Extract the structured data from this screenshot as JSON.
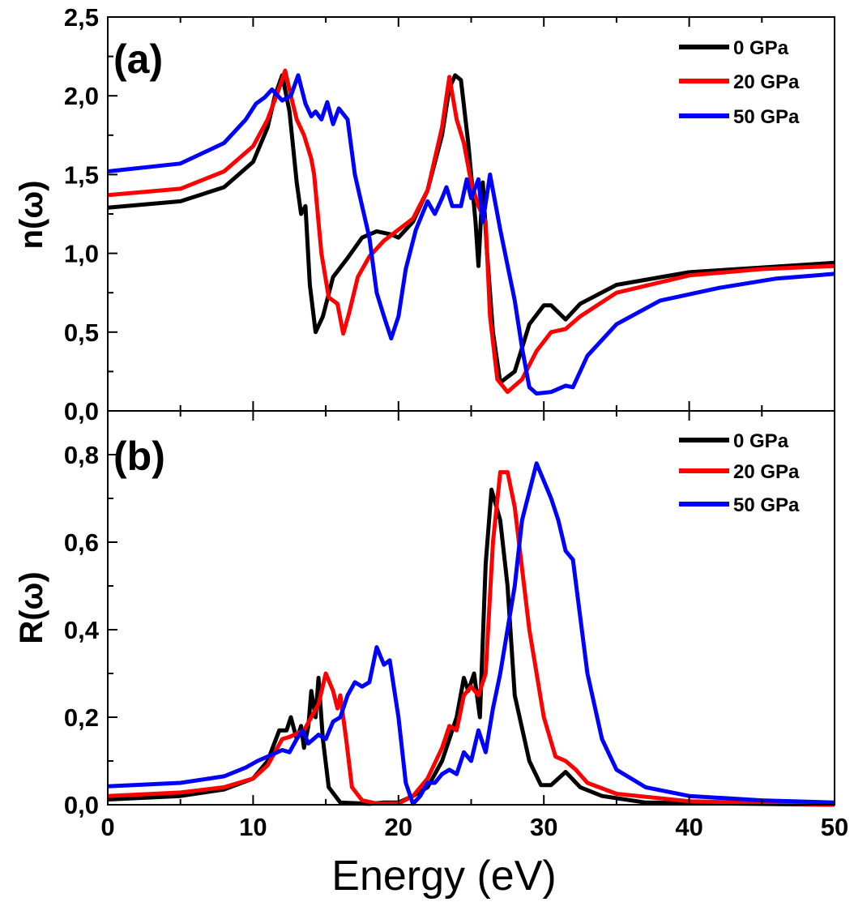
{
  "chart_data": [
    {
      "type": "line",
      "panel_label": "(a)",
      "xlabel": "Energy (eV)",
      "ylabel": "n(ω)",
      "xlim": [
        0,
        50
      ],
      "ylim": [
        0,
        2.5
      ],
      "xticks": [
        "0",
        "10",
        "20",
        "30",
        "40",
        "50"
      ],
      "yticks": [
        "0,0",
        "0,5",
        "1,0",
        "1,5",
        "2,0",
        "2,5"
      ],
      "grid": false,
      "legend_position": "top-right",
      "series": [
        {
          "name": "0 GPa",
          "color": "#000000",
          "x": [
            0,
            5,
            8,
            10,
            11,
            11.5,
            12,
            12.5,
            13,
            13.3,
            13.6,
            13.9,
            14.3,
            14.8,
            15.5,
            16.5,
            17.5,
            18.5,
            19.5,
            20,
            21,
            22,
            23,
            23.5,
            23.9,
            24.3,
            24.8,
            25.3,
            25.5,
            25.8,
            26.1,
            26.5,
            27,
            28,
            29,
            30,
            30.5,
            31.5,
            32.5,
            35,
            40,
            45,
            50
          ],
          "y": [
            1.29,
            1.33,
            1.42,
            1.58,
            1.8,
            2.0,
            2.13,
            1.9,
            1.45,
            1.25,
            1.3,
            0.8,
            0.5,
            0.6,
            0.85,
            0.97,
            1.1,
            1.14,
            1.12,
            1.1,
            1.2,
            1.4,
            1.75,
            2.05,
            2.13,
            2.1,
            1.7,
            1.2,
            0.92,
            1.45,
            1.0,
            0.5,
            0.18,
            0.25,
            0.55,
            0.67,
            0.67,
            0.58,
            0.68,
            0.8,
            0.88,
            0.91,
            0.94
          ]
        },
        {
          "name": "20 GPa",
          "color": "#ff0000",
          "x": [
            0,
            5,
            8,
            10,
            11,
            11.8,
            12.2,
            12.6,
            13,
            13.5,
            14,
            14.2,
            14.7,
            15.2,
            15.8,
            16.2,
            16.6,
            17.2,
            18,
            19,
            20,
            21,
            22,
            23,
            23.5,
            24,
            24.5,
            25,
            25.5,
            26,
            26.3,
            26.8,
            27.5,
            28.5,
            29.5,
            30.5,
            31.5,
            32.5,
            35,
            40,
            45,
            50
          ],
          "y": [
            1.37,
            1.41,
            1.52,
            1.68,
            1.85,
            2.05,
            2.16,
            2.0,
            1.85,
            1.75,
            1.6,
            1.5,
            1.0,
            0.72,
            0.68,
            0.49,
            0.62,
            0.85,
            0.98,
            1.08,
            1.15,
            1.22,
            1.4,
            1.8,
            2.12,
            1.85,
            1.7,
            1.45,
            1.3,
            1.2,
            0.6,
            0.2,
            0.12,
            0.2,
            0.38,
            0.5,
            0.52,
            0.6,
            0.75,
            0.86,
            0.9,
            0.92
          ]
        },
        {
          "name": "50 GPa",
          "color": "#0000ff",
          "x": [
            0,
            5,
            8,
            9.5,
            10.2,
            10.8,
            11.3,
            12,
            12.6,
            13.1,
            13.6,
            14,
            14.3,
            14.7,
            15.1,
            15.5,
            15.9,
            16.5,
            17,
            17.5,
            18,
            18.5,
            19,
            19.5,
            20,
            20.5,
            21.2,
            22,
            22.5,
            23,
            23.3,
            23.7,
            24.3,
            24.7,
            25,
            25.5,
            25.8,
            26.3,
            27,
            28,
            28.5,
            29,
            29.5,
            30.5,
            31.5,
            32,
            33,
            35,
            38,
            42,
            46,
            50
          ],
          "y": [
            1.52,
            1.57,
            1.7,
            1.85,
            1.95,
            1.99,
            2.04,
            1.97,
            2.0,
            2.13,
            1.95,
            1.87,
            1.9,
            1.85,
            1.96,
            1.82,
            1.92,
            1.85,
            1.5,
            1.3,
            1.1,
            0.75,
            0.6,
            0.46,
            0.6,
            0.9,
            1.15,
            1.33,
            1.25,
            1.35,
            1.42,
            1.3,
            1.3,
            1.47,
            1.35,
            1.47,
            1.2,
            1.5,
            1.15,
            0.7,
            0.4,
            0.15,
            0.11,
            0.12,
            0.16,
            0.15,
            0.35,
            0.55,
            0.7,
            0.78,
            0.84,
            0.87
          ]
        }
      ]
    },
    {
      "type": "line",
      "panel_label": "(b)",
      "xlabel": "Energy (eV)",
      "ylabel": "R(ω)",
      "xlim": [
        0,
        50
      ],
      "ylim": [
        0,
        0.9
      ],
      "xticks": [
        "0",
        "10",
        "20",
        "30",
        "40",
        "50"
      ],
      "yticks": [
        "0,0",
        "0,2",
        "0,4",
        "0,6",
        "0,8"
      ],
      "grid": false,
      "legend_position": "top-right",
      "series": [
        {
          "name": "0 GPa",
          "color": "#000000",
          "x": [
            0,
            5,
            8,
            10,
            11,
            11.8,
            12.3,
            12.6,
            13,
            13.3,
            13.5,
            13.8,
            14,
            14.3,
            14.5,
            14.8,
            15.2,
            16,
            18,
            19,
            20,
            21,
            22,
            23,
            24,
            24.5,
            24.8,
            25.2,
            25.6,
            26,
            26.4,
            27,
            27.5,
            28,
            29,
            29.8,
            30.5,
            31.5,
            32.5,
            34,
            37,
            50
          ],
          "y": [
            0.012,
            0.02,
            0.035,
            0.06,
            0.1,
            0.17,
            0.17,
            0.2,
            0.15,
            0.18,
            0.13,
            0.18,
            0.26,
            0.2,
            0.29,
            0.15,
            0.04,
            0.005,
            0.002,
            0.005,
            0.005,
            0.02,
            0.04,
            0.1,
            0.2,
            0.29,
            0.26,
            0.3,
            0.2,
            0.55,
            0.72,
            0.65,
            0.5,
            0.25,
            0.1,
            0.045,
            0.045,
            0.075,
            0.04,
            0.02,
            0.005,
            0.0
          ]
        },
        {
          "name": "20 GPa",
          "color": "#ff0000",
          "x": [
            0,
            5,
            8,
            10,
            11,
            12,
            12.5,
            13.5,
            14,
            14.5,
            15,
            15.5,
            15.8,
            16,
            16.4,
            16.8,
            17.5,
            18.5,
            20,
            21,
            22,
            23,
            23.5,
            24,
            24.5,
            25,
            25.5,
            26,
            26.5,
            27,
            27.5,
            28,
            29,
            30,
            30.8,
            31.5,
            32.2,
            33,
            35,
            40,
            50
          ],
          "y": [
            0.02,
            0.028,
            0.04,
            0.06,
            0.09,
            0.15,
            0.155,
            0.17,
            0.2,
            0.23,
            0.3,
            0.26,
            0.22,
            0.25,
            0.15,
            0.04,
            0.01,
            0.003,
            0.003,
            0.02,
            0.06,
            0.13,
            0.18,
            0.17,
            0.25,
            0.27,
            0.25,
            0.3,
            0.6,
            0.76,
            0.76,
            0.68,
            0.4,
            0.2,
            0.11,
            0.1,
            0.08,
            0.05,
            0.025,
            0.008,
            0.0
          ]
        },
        {
          "name": "50 GPa",
          "color": "#0000ff",
          "x": [
            0,
            5,
            8,
            9.5,
            10.3,
            11,
            12,
            12.5,
            13,
            13.4,
            13.8,
            14.5,
            15,
            15.5,
            16,
            16.5,
            17,
            17.5,
            18,
            18.5,
            19,
            19.4,
            20,
            20.5,
            21,
            21.5,
            22,
            22.5,
            23,
            23.5,
            24,
            24.5,
            25,
            25.5,
            26,
            26.5,
            27,
            28,
            28.5,
            29.5,
            30.5,
            31,
            31.5,
            32,
            33,
            34,
            35,
            37,
            40,
            45,
            50
          ],
          "y": [
            0.042,
            0.05,
            0.065,
            0.085,
            0.1,
            0.11,
            0.125,
            0.12,
            0.15,
            0.17,
            0.14,
            0.16,
            0.15,
            0.19,
            0.2,
            0.25,
            0.28,
            0.27,
            0.28,
            0.36,
            0.32,
            0.33,
            0.2,
            0.05,
            0.002,
            0.02,
            0.05,
            0.05,
            0.07,
            0.08,
            0.07,
            0.12,
            0.1,
            0.17,
            0.12,
            0.22,
            0.3,
            0.5,
            0.65,
            0.78,
            0.7,
            0.65,
            0.58,
            0.56,
            0.3,
            0.15,
            0.08,
            0.04,
            0.02,
            0.01,
            0.005
          ]
        }
      ]
    }
  ]
}
